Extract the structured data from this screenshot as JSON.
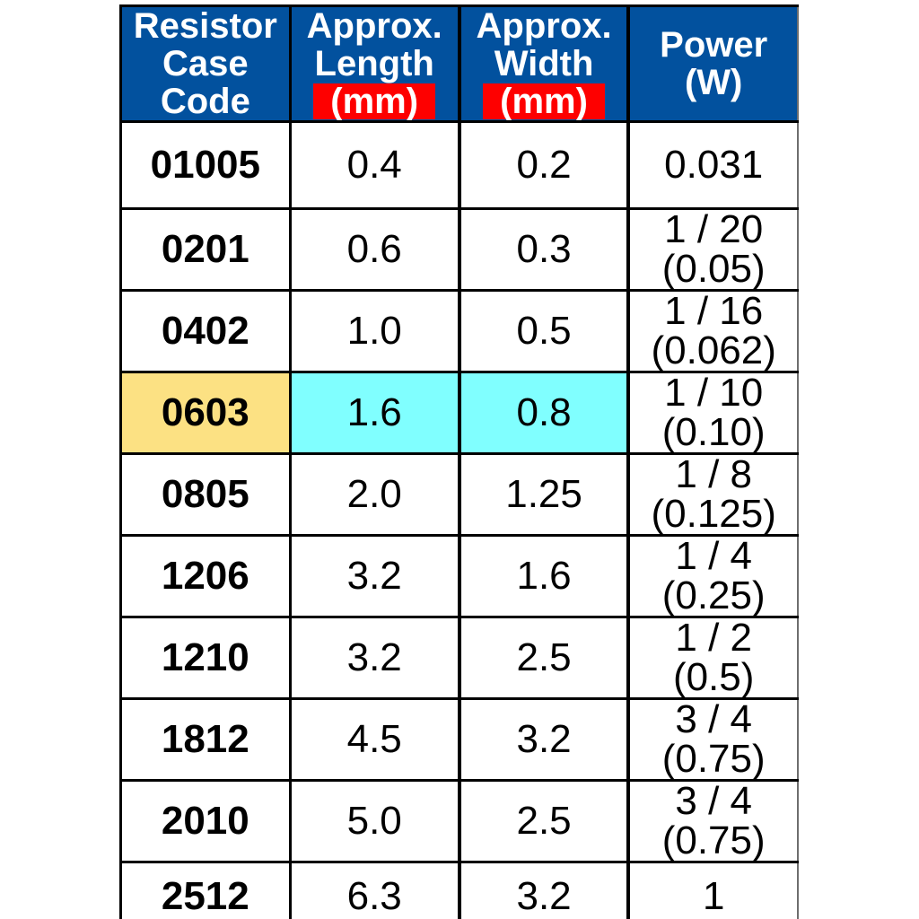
{
  "colors": {
    "header_bg": "#02519E",
    "header_text": "#FFFFFF",
    "unit_bg": "#FE0000",
    "unit_text": "#FFFFFF",
    "highlight_code_bg": "#FCE183",
    "highlight_dims_bg": "#80FFFF",
    "grid": "#000000",
    "body_text": "#000000"
  },
  "table": {
    "columns": [
      {
        "key": "resistor-case-code",
        "label_lines": [
          "Resistor",
          "Case",
          "Code"
        ],
        "unit": ""
      },
      {
        "key": "approx-length",
        "label_lines": [
          "Approx.",
          "Length"
        ],
        "unit": "(mm)"
      },
      {
        "key": "approx-width",
        "label_lines": [
          "Approx.",
          "Width"
        ],
        "unit": "(mm)"
      },
      {
        "key": "power-w",
        "label_lines": [
          "Power",
          "(W)"
        ],
        "unit": ""
      }
    ],
    "rows": [
      {
        "code": "01005",
        "length": "0.4",
        "width": "0.2",
        "power": [
          "0.031"
        ],
        "highlighted": false
      },
      {
        "code": "0201",
        "length": "0.6",
        "width": "0.3",
        "power": [
          "1 / 20",
          "(0.05)"
        ],
        "highlighted": false
      },
      {
        "code": "0402",
        "length": "1.0",
        "width": "0.5",
        "power": [
          "1 / 16",
          "(0.062)"
        ],
        "highlighted": false
      },
      {
        "code": "0603",
        "length": "1.6",
        "width": "0.8",
        "power": [
          "1 / 10",
          "(0.10)"
        ],
        "highlighted": true
      },
      {
        "code": "0805",
        "length": "2.0",
        "width": "1.25",
        "power": [
          "1 / 8",
          "(0.125)"
        ],
        "highlighted": false
      },
      {
        "code": "1206",
        "length": "3.2",
        "width": "1.6",
        "power": [
          "1 / 4",
          "(0.25)"
        ],
        "highlighted": false
      },
      {
        "code": "1210",
        "length": "3.2",
        "width": "2.5",
        "power": [
          "1 / 2",
          "(0.5)"
        ],
        "highlighted": false
      },
      {
        "code": "1812",
        "length": "4.5",
        "width": "3.2",
        "power": [
          "3 / 4",
          "(0.75)"
        ],
        "highlighted": false
      },
      {
        "code": "2010",
        "length": "5.0",
        "width": "2.5",
        "power": [
          "3 / 4",
          "(0.75)"
        ],
        "highlighted": false
      },
      {
        "code": "2512",
        "length": "6.3",
        "width": "3.2",
        "power": [
          "1"
        ],
        "highlighted": false
      }
    ]
  },
  "chart_data": {
    "type": "table",
    "title": "",
    "columns": [
      "Resistor Case Code",
      "Approx. Length (mm)",
      "Approx. Width (mm)",
      "Power (W)"
    ],
    "rows": [
      [
        "01005",
        "0.4",
        "0.2",
        "0.031"
      ],
      [
        "0201",
        "0.6",
        "0.3",
        "1 / 20 (0.05)"
      ],
      [
        "0402",
        "1.0",
        "0.5",
        "1 / 16 (0.062)"
      ],
      [
        "0603",
        "1.6",
        "0.8",
        "1 / 10 (0.10)"
      ],
      [
        "0805",
        "2.0",
        "1.25",
        "1 / 8 (0.125)"
      ],
      [
        "1206",
        "3.2",
        "1.6",
        "1 / 4 (0.25)"
      ],
      [
        "1210",
        "3.2",
        "2.5",
        "1 / 2 (0.5)"
      ],
      [
        "1812",
        "4.5",
        "3.2",
        "3 / 4 (0.75)"
      ],
      [
        "2010",
        "5.0",
        "2.5",
        "3 / 4 (0.75)"
      ],
      [
        "2512",
        "6.3",
        "3.2",
        "1"
      ]
    ],
    "highlighted_row": "0603",
    "layout_hints": {
      "header_background": "#02519E",
      "unit_highlight_background": "#FE0000",
      "highlighted_code_cell": "#FCE183",
      "highlighted_dimension_cells": "#80FFFF",
      "grid": true
    }
  }
}
